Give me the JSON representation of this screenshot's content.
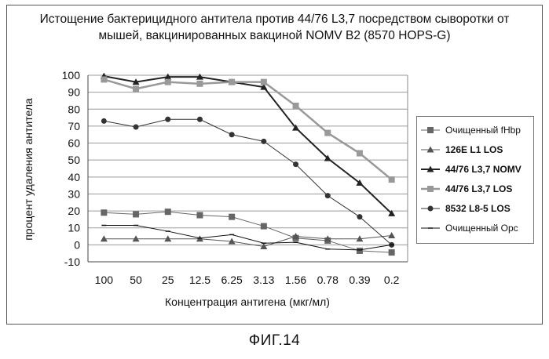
{
  "title_lines": [
    "Истощение бактерицидного антитела против 44/76 L3,7 посредством сыворотки от",
    "мышей, вакцинированных вакциной NOMV B2 (8570 HOPS-G)"
  ],
  "figure_caption": "ФИГ.14",
  "chart_data": {
    "type": "line",
    "xlabel": "Концентрация антигена (мкг/мл)",
    "ylabel": "процент удаления антитела",
    "categories": [
      "100",
      "50",
      "25",
      "12.5",
      "6.25",
      "3.13",
      "1.56",
      "0.78",
      "0.39",
      "0.2"
    ],
    "ylim": [
      -10,
      100
    ],
    "yticks": [
      -10,
      0,
      10,
      20,
      30,
      40,
      50,
      60,
      70,
      80,
      90,
      100
    ],
    "grid": true,
    "legend_position": "right",
    "series": [
      {
        "name": "Очищенный fHbp",
        "marker": "square",
        "color": "#666666",
        "bold": false,
        "values": [
          19,
          18,
          19.5,
          17.5,
          16.5,
          11,
          4,
          2.5,
          -3.5,
          -4.5
        ]
      },
      {
        "name": "126E L1 LOS",
        "marker": "triangle",
        "color": "#555555",
        "bold": true,
        "values": [
          3.5,
          3.5,
          3.5,
          3.5,
          2,
          -1,
          5,
          3.5,
          3.5,
          5.5
        ]
      },
      {
        "name": "44/76 L3,7 NOMV",
        "marker": "triangle",
        "color": "#222222",
        "bold": true,
        "values": [
          99.5,
          96,
          99,
          99,
          96,
          93,
          69,
          51,
          36.5,
          18.5
        ]
      },
      {
        "name": "44/76 L3,7 LOS",
        "marker": "square",
        "color": "#999999",
        "bold": true,
        "values": [
          97.5,
          92,
          96,
          95,
          96,
          96,
          82,
          66,
          54,
          38.5
        ]
      },
      {
        "name": "8532 L8-5 LOS",
        "marker": "circle",
        "color": "#333333",
        "bold": true,
        "values": [
          73,
          69.5,
          74,
          74,
          65,
          61,
          47.5,
          29,
          16.5,
          0
        ]
      },
      {
        "name": "Очищенный Opc",
        "marker": "dash",
        "color": "#111111",
        "bold": false,
        "values": [
          11.5,
          11.5,
          8,
          4,
          6,
          1,
          1.5,
          -2.5,
          -3,
          0
        ]
      }
    ]
  }
}
